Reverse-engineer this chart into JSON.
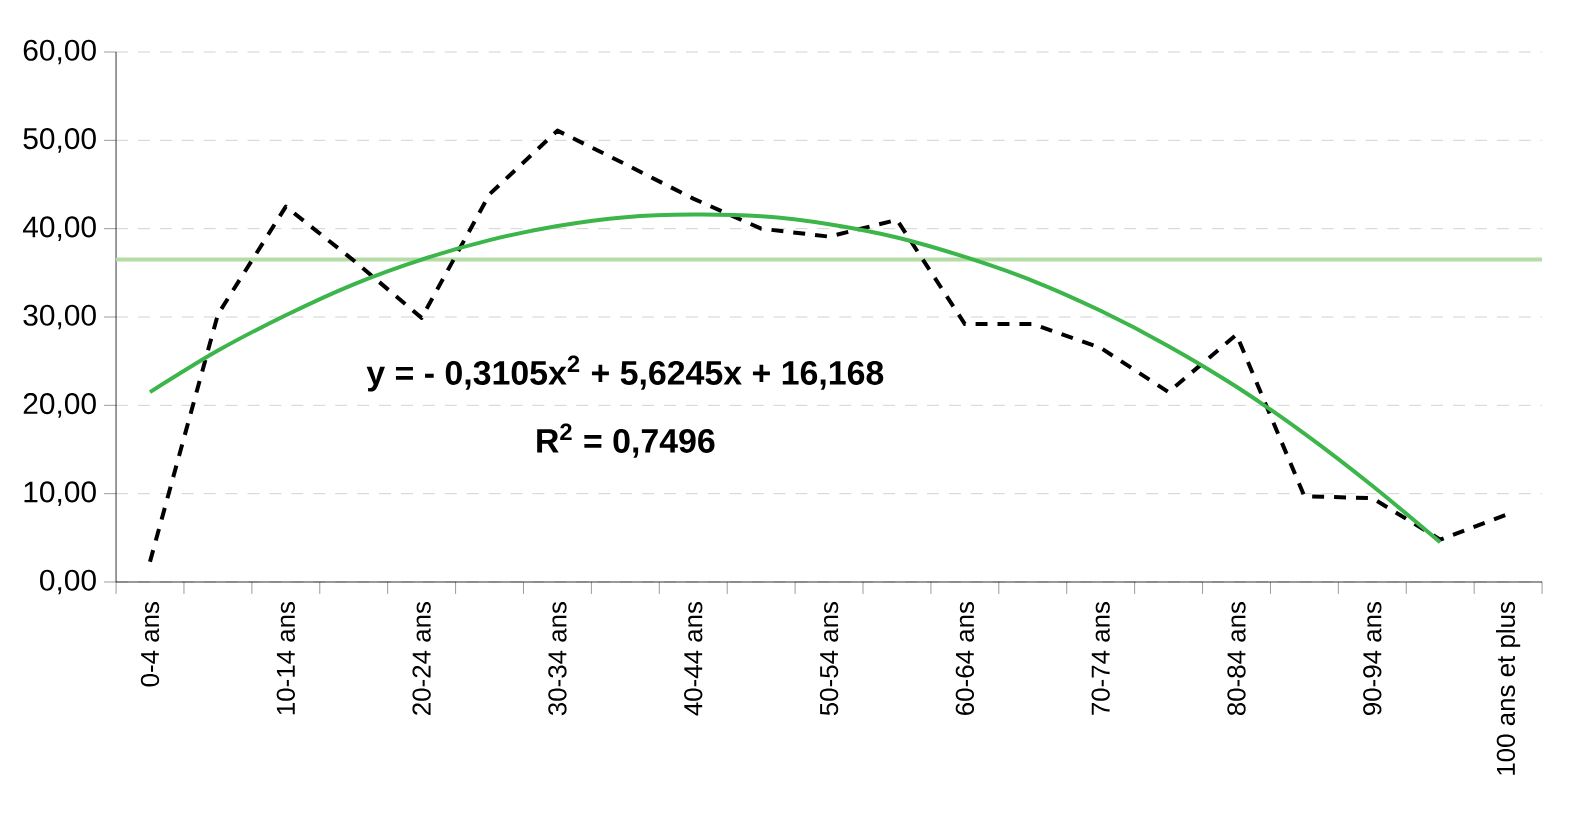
{
  "chart_data": {
    "type": "line",
    "categories": [
      "0-4 ans",
      null,
      "10-14 ans",
      null,
      "20-24 ans",
      null,
      "30-34 ans",
      null,
      "40-44 ans",
      null,
      "50-54 ans",
      null,
      "60-64 ans",
      null,
      "70-74 ans",
      null,
      "80-84 ans",
      null,
      "90-94 ans",
      null,
      "100 ans et plus"
    ],
    "series": [
      {
        "color": "#000000",
        "line_style": "dashed",
        "values": [
          2.3,
          30.3,
          42.5,
          36.4,
          29.9,
          43.9,
          51.1,
          47.3,
          43.4,
          40.0,
          39.1,
          41.0,
          29.2,
          29.2,
          26.5,
          21.5,
          28.0,
          9.7,
          9.5,
          4.8,
          7.7
        ]
      },
      {
        "color": "#3cb54a",
        "line_style": "solid",
        "values": [
          21.5,
          26.2,
          30.2,
          33.7,
          36.5,
          38.7,
          40.3,
          41.3,
          41.6,
          41.4,
          40.5,
          39.0,
          36.8,
          34.1,
          30.7,
          26.7,
          22.1,
          16.8,
          10.9,
          4.5,
          null
        ]
      }
    ],
    "ylim": [
      0,
      60
    ],
    "yticks": [
      {
        "value": 0,
        "label": "0,00"
      },
      {
        "value": 10,
        "label": "10,00"
      },
      {
        "value": 20,
        "label": "20,00"
      },
      {
        "value": 30,
        "label": "30,00"
      },
      {
        "value": 40,
        "label": "40,00"
      },
      {
        "value": 50,
        "label": "50,00"
      },
      {
        "value": 60,
        "label": "60,00"
      }
    ],
    "grid": "y",
    "ref_lines": [
      {
        "axis": "y",
        "value": 36.5,
        "color": "#b5dca6"
      }
    ],
    "annotations": [
      "y =  - 0,3105x$^{2}$ + 5,6245x + 16,168",
      "R$^{2}$ =  0,7496"
    ]
  }
}
